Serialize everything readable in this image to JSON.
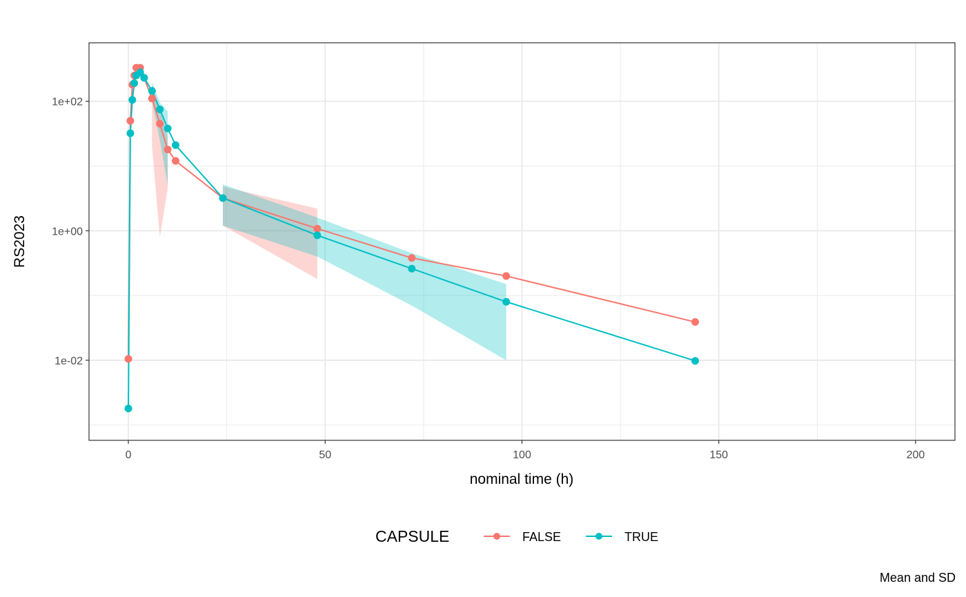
{
  "chart_data": {
    "type": "line",
    "xlabel": "nominal time (h)",
    "ylabel": "RS2023",
    "caption": "Mean and SD",
    "y_scale": "log10",
    "xlim": [
      -10,
      210
    ],
    "ylim": [
      0.00058,
      800
    ],
    "x_ticks": [
      0,
      50,
      100,
      150,
      200
    ],
    "x_tick_labels": [
      "0",
      "50",
      "100",
      "150",
      "200"
    ],
    "y_ticks": [
      0.01,
      1,
      100
    ],
    "y_tick_labels": [
      "1e-02",
      "1e+00",
      "1e+02"
    ],
    "grid": true,
    "legend": {
      "title": "CAPSULE",
      "position": "bottom"
    },
    "series": [
      {
        "name": "FALSE",
        "color": "#F8766D",
        "x": [
          0,
          0.5,
          1,
          1.5,
          2,
          3,
          4,
          6,
          8,
          10,
          12,
          24,
          48,
          72,
          96,
          144
        ],
        "y": [
          0.0105,
          50,
          180,
          250,
          330,
          330,
          230,
          110,
          45,
          18,
          12,
          3.2,
          1.08,
          0.38,
          0.2,
          0.039
        ],
        "sd_lower": [
          null,
          null,
          null,
          null,
          null,
          null,
          null,
          20,
          0.8,
          4.5,
          null,
          1.2,
          0.18,
          null,
          null,
          null
        ],
        "sd_upper": [
          null,
          null,
          null,
          null,
          null,
          null,
          null,
          180,
          80,
          28,
          null,
          4.8,
          2.2,
          null,
          null,
          null
        ]
      },
      {
        "name": "TRUE",
        "color": "#00BFC4",
        "x": [
          0,
          0.5,
          1,
          1.5,
          2,
          3,
          4,
          6,
          8,
          10,
          12,
          24,
          48,
          72,
          96,
          144
        ],
        "y": [
          0.0018,
          32,
          105,
          190,
          250,
          280,
          230,
          145,
          75,
          38,
          21,
          3.2,
          0.85,
          0.26,
          0.08,
          0.0098
        ],
        "sd_lower": [
          null,
          null,
          null,
          null,
          null,
          null,
          null,
          105,
          25,
          5,
          null,
          1.2,
          0.4,
          0.07,
          0.01,
          null
        ],
        "sd_upper": [
          null,
          null,
          null,
          null,
          null,
          null,
          null,
          200,
          95,
          70,
          null,
          5.2,
          1.6,
          0.45,
          0.15,
          null
        ]
      }
    ]
  }
}
